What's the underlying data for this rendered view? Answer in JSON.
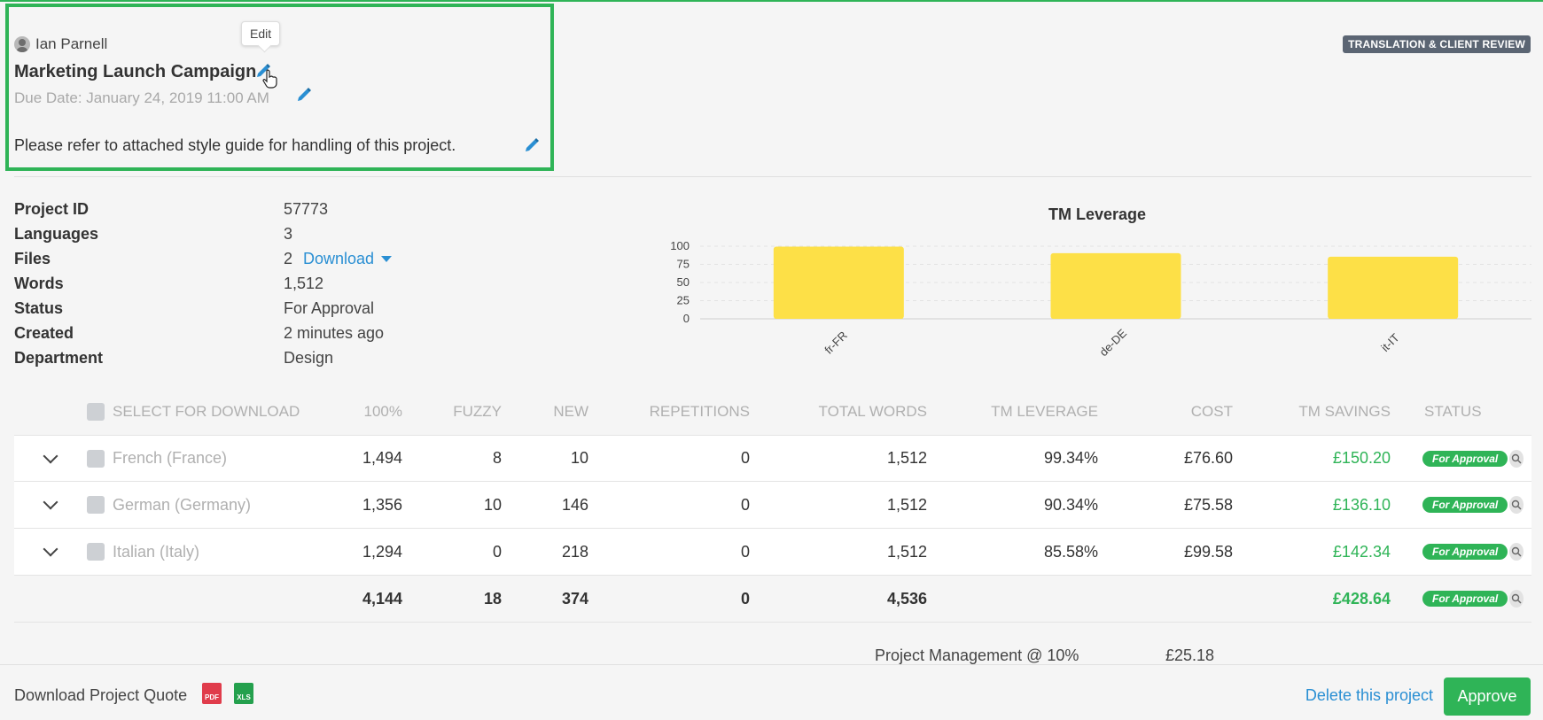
{
  "owner": {
    "name": "Ian Parnell",
    "icon": "user-icon"
  },
  "tooltip": {
    "label": "Edit"
  },
  "project": {
    "title": "Marketing Launch Campaign",
    "due_date": "Due Date: January 24, 2019 11:00 AM",
    "note": "Please refer to attached style guide for handling of this project.",
    "workflow": "TRANSLATION & CLIENT REVIEW"
  },
  "details": [
    {
      "label": "Project ID",
      "value": "57773"
    },
    {
      "label": "Languages",
      "value": "3"
    },
    {
      "label": "Files",
      "value": "2",
      "link": "Download"
    },
    {
      "label": "Words",
      "value": "1,512"
    },
    {
      "label": "Status",
      "value": "For Approval"
    },
    {
      "label": "Created",
      "value": "2 minutes ago"
    },
    {
      "label": "Department",
      "value": "Design"
    }
  ],
  "chart_data": {
    "type": "bar",
    "title": "TM Leverage",
    "categories": [
      "fr-FR",
      "de-DE",
      "it-IT"
    ],
    "values": [
      99.34,
      90.34,
      85.58
    ],
    "ylim": [
      0,
      100
    ],
    "yticks": [
      0,
      25,
      50,
      75,
      100
    ],
    "grid": true,
    "bar_color": "#fde047",
    "xlabel": "",
    "ylabel": ""
  },
  "table": {
    "headers": {
      "select": "SELECT FOR DOWNLOAD",
      "pct100": "100%",
      "fuzzy": "FUZZY",
      "new": "NEW",
      "repetitions": "REPETITIONS",
      "total_words": "TOTAL WORDS",
      "tm_leverage": "TM LEVERAGE",
      "cost": "COST",
      "tm_savings": "TM SAVINGS",
      "status": "STATUS"
    },
    "rows": [
      {
        "language": "French (France)",
        "pct100": "1,494",
        "fuzzy": "8",
        "new": "10",
        "repetitions": "0",
        "total_words": "1,512",
        "tm_leverage": "99.34%",
        "cost": "£76.60",
        "tm_savings": "£150.20",
        "status": "For Approval"
      },
      {
        "language": "German (Germany)",
        "pct100": "1,356",
        "fuzzy": "10",
        "new": "146",
        "repetitions": "0",
        "total_words": "1,512",
        "tm_leverage": "90.34%",
        "cost": "£75.58",
        "tm_savings": "£136.10",
        "status": "For Approval"
      },
      {
        "language": "Italian (Italy)",
        "pct100": "1,294",
        "fuzzy": "0",
        "new": "218",
        "repetitions": "0",
        "total_words": "1,512",
        "tm_leverage": "85.58%",
        "cost": "£99.58",
        "tm_savings": "£142.34",
        "status": "For Approval"
      }
    ],
    "totals": {
      "pct100": "4,144",
      "fuzzy": "18",
      "new": "374",
      "repetitions": "0",
      "total_words": "4,536",
      "tm_savings": "£428.64",
      "status": "For Approval"
    },
    "project_management": {
      "label": "Project Management @ 10%",
      "value": "£25.18"
    }
  },
  "footer": {
    "quote_label": "Download Project Quote",
    "pdf_label": "PDF",
    "xls_label": "XLS",
    "delete_label": "Delete this project",
    "approve_label": "Approve"
  },
  "colors": {
    "accent": "#2fb457",
    "link": "#2a8fd3",
    "badge": "#5b6573"
  }
}
